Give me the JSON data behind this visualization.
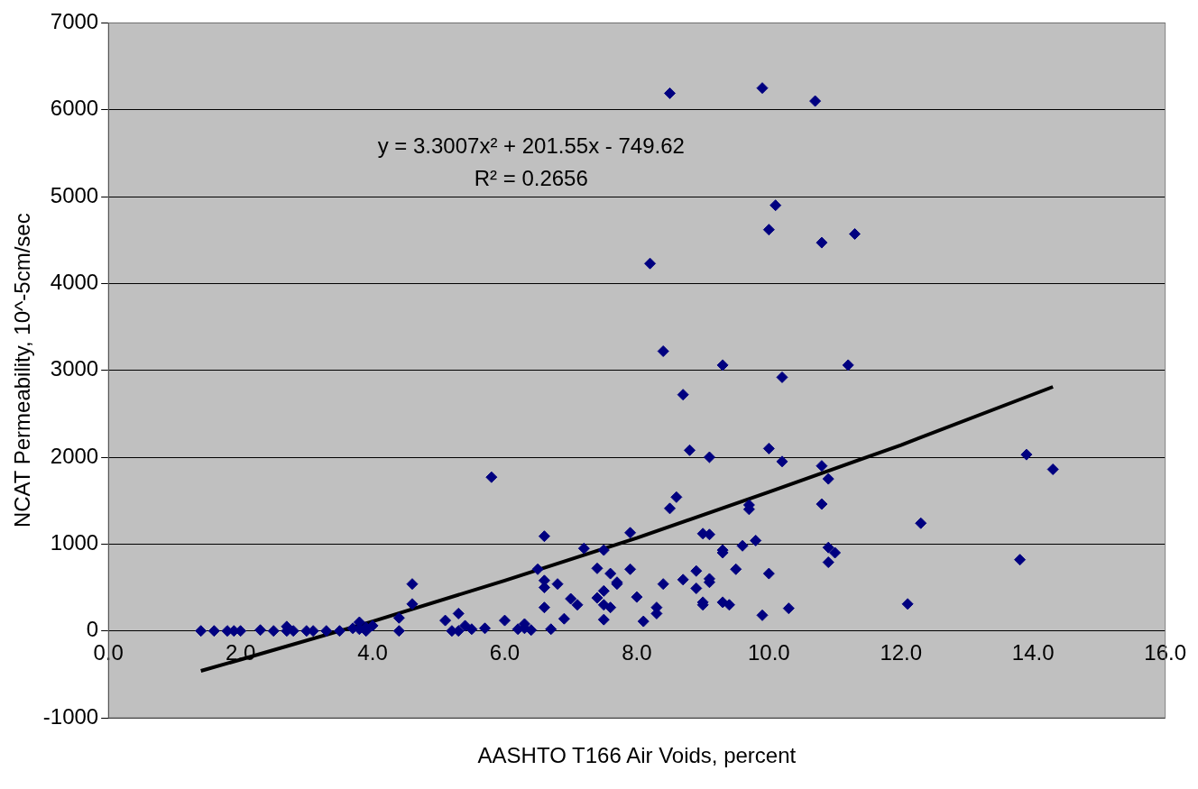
{
  "chart_data": {
    "type": "scatter",
    "xlabel": "AASHTO T166 Air Voids, percent",
    "ylabel": "NCAT Permeability, 10^-5cm/sec",
    "xlim": [
      0,
      16
    ],
    "xticks": [
      {
        "value": 0,
        "label": "0.0"
      },
      {
        "value": 2,
        "label": "2.0"
      },
      {
        "value": 4,
        "label": "4.0"
      },
      {
        "value": 6,
        "label": "6.0"
      },
      {
        "value": 8,
        "label": "8.0"
      },
      {
        "value": 10,
        "label": "10.0"
      },
      {
        "value": 12,
        "label": "12.0"
      },
      {
        "value": 14,
        "label": "14.0"
      },
      {
        "value": 16,
        "label": "16.0"
      }
    ],
    "ylim": [
      -1000,
      7000
    ],
    "yticks": [
      -1000,
      0,
      1000,
      2000,
      3000,
      4000,
      5000,
      6000,
      7000
    ],
    "grid": "y",
    "legend": false,
    "marker": "diamond",
    "annotations": [
      "y = 3.3007x² + 201.55x - 749.62",
      "R² = 0.2656"
    ],
    "series": [
      {
        "color": "#000080",
        "x": [
          1.4,
          1.6,
          1.8,
          1.9,
          2.0,
          2.3,
          2.5,
          2.7,
          2.7,
          2.8,
          3.0,
          3.1,
          3.3,
          3.5,
          3.7,
          3.8,
          3.8,
          3.9,
          3.9,
          4.0,
          4.4,
          4.4,
          4.6,
          4.6,
          5.1,
          5.2,
          5.3,
          5.3,
          5.4,
          5.5,
          5.7,
          5.8,
          6.0,
          6.2,
          6.3,
          6.3,
          6.4,
          6.5,
          6.6,
          6.6,
          6.6,
          6.6,
          6.7,
          6.8,
          6.9,
          7.0,
          7.1,
          7.2,
          7.4,
          7.4,
          7.5,
          7.5,
          7.5,
          7.5,
          7.6,
          7.6,
          7.7,
          7.7,
          7.9,
          7.9,
          8.0,
          8.1,
          8.2,
          8.3,
          8.3,
          8.4,
          8.4,
          8.5,
          8.5,
          8.6,
          8.7,
          8.7,
          8.8,
          8.9,
          8.9,
          9.0,
          9.0,
          9.0,
          9.1,
          9.1,
          9.1,
          9.1,
          9.3,
          9.3,
          9.3,
          9.3,
          9.4,
          9.5,
          9.6,
          9.7,
          9.7,
          9.8,
          9.9,
          9.9,
          10.0,
          10.0,
          10.0,
          10.1,
          10.2,
          10.2,
          10.3,
          10.7,
          10.8,
          10.8,
          10.8,
          10.9,
          10.9,
          10.9,
          11.0,
          11.2,
          11.3,
          12.1,
          12.3,
          13.8,
          13.9,
          14.3
        ],
        "values": [
          0,
          0,
          0,
          0,
          0,
          10,
          0,
          50,
          0,
          0,
          0,
          0,
          0,
          0,
          30,
          100,
          20,
          0,
          40,
          60,
          150,
          0,
          310,
          540,
          120,
          0,
          200,
          0,
          60,
          20,
          30,
          1770,
          120,
          20,
          80,
          30,
          10,
          710,
          1090,
          580,
          500,
          270,
          20,
          540,
          140,
          370,
          300,
          950,
          720,
          380,
          460,
          300,
          130,
          930,
          660,
          270,
          540,
          560,
          1130,
          710,
          390,
          110,
          4230,
          270,
          200,
          3220,
          540,
          6190,
          1410,
          1540,
          2720,
          590,
          2080,
          690,
          490,
          1120,
          330,
          300,
          2000,
          1110,
          600,
          560,
          3060,
          930,
          900,
          330,
          300,
          710,
          980,
          1450,
          1400,
          1040,
          6250,
          180,
          4620,
          2100,
          660,
          4900,
          2920,
          1950,
          260,
          6100,
          4470,
          1900,
          1460,
          1750,
          960,
          790,
          900,
          3060,
          4570,
          310,
          1240,
          820,
          2030,
          1860
        ]
      },
      {
        "type": "line",
        "color": "#000000",
        "line_style": "solid",
        "marker": "none",
        "x": [
          1.4,
          2,
          4,
          6,
          8,
          10,
          12,
          14.3
        ],
        "values": [
          -460,
          -330,
          110,
          580,
          1070,
          1600,
          2140,
          2810
        ]
      }
    ]
  }
}
